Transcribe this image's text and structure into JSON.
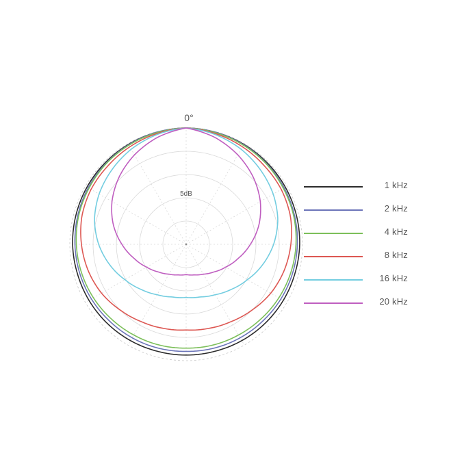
{
  "chart_data": {
    "type": "polar",
    "title": "",
    "angle_label": "0°",
    "radial_label": "5dB",
    "rlim": [
      -25,
      0
    ],
    "rings_db": [
      0,
      -5,
      -10,
      -15,
      -20,
      -25
    ],
    "spokes_deg": 30,
    "grid": true,
    "legend_position": "right",
    "angles_deg": [
      0,
      15,
      30,
      45,
      60,
      75,
      90,
      105,
      120,
      135,
      150,
      165,
      180
    ],
    "series": [
      {
        "name": "1 kHz",
        "color": "#2b2b2b",
        "values": [
          0,
          -0.1,
          -0.2,
          -0.3,
          -0.4,
          -0.5,
          -0.6,
          -0.8,
          -0.9,
          -1.0,
          -1.1,
          -1.2,
          -1.2
        ]
      },
      {
        "name": "2 kHz",
        "color": "#6b74b8",
        "values": [
          0,
          -0.1,
          -0.3,
          -0.5,
          -0.7,
          -0.9,
          -1.1,
          -1.3,
          -1.5,
          -1.7,
          -1.8,
          -1.9,
          -2.0
        ]
      },
      {
        "name": "4 kHz",
        "color": "#7cbf5a",
        "values": [
          0,
          -0.2,
          -0.4,
          -0.6,
          -0.9,
          -1.1,
          -1.4,
          -1.7,
          -2.0,
          -2.3,
          -2.5,
          -2.6,
          -2.7
        ]
      },
      {
        "name": "8 kHz",
        "color": "#dd5752",
        "values": [
          0,
          -0.4,
          -0.8,
          -1.2,
          -1.4,
          -1.8,
          -2.5,
          -3.2,
          -4.0,
          -5.0,
          -5.8,
          -6.3,
          -6.6
        ]
      },
      {
        "name": "16 kHz",
        "color": "#73cde0",
        "values": [
          0,
          -0.6,
          -1.4,
          -2.4,
          -3.4,
          -4.6,
          -6.2,
          -8.0,
          -9.8,
          -11.3,
          -12.5,
          -13.3,
          -13.6
        ]
      },
      {
        "name": "20 kHz",
        "color": "#bf5ec0",
        "values": [
          0,
          -1.2,
          -2.8,
          -4.6,
          -6.6,
          -8.8,
          -11.2,
          -13.4,
          -15.2,
          -16.6,
          -17.6,
          -18.2,
          -18.5
        ]
      }
    ]
  },
  "legend": {
    "items": [
      {
        "label": "1 kHz",
        "color": "#2b2b2b"
      },
      {
        "label": "2 kHz",
        "color": "#6b74b8"
      },
      {
        "label": "4 kHz",
        "color": "#7cbf5a"
      },
      {
        "label": "8 kHz",
        "color": "#dd5752"
      },
      {
        "label": "16 kHz",
        "color": "#73cde0"
      },
      {
        "label": "20 kHz",
        "color": "#bf5ec0"
      }
    ]
  }
}
